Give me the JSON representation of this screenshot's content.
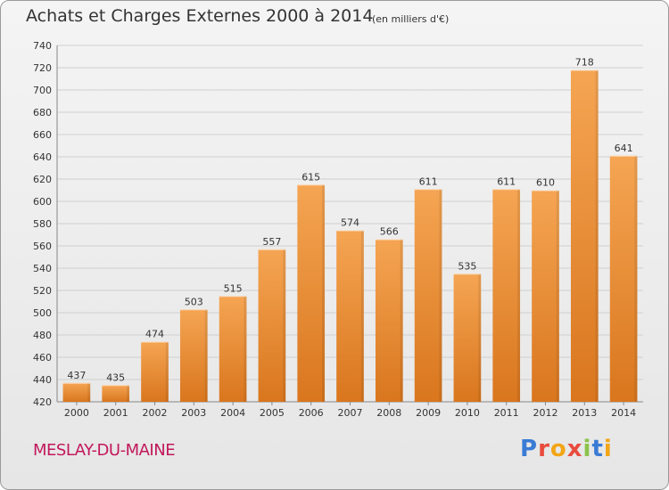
{
  "header": {
    "title": "Achats et Charges Externes 2000 à 2014",
    "subtitle": "(en milliers d'€)"
  },
  "footer": {
    "location": "MESLAY-DU-MAINE",
    "brand": "Proxiti"
  },
  "colors": {
    "bar_light": "#f5a553",
    "bar_dark": "#d9761e",
    "grid": "#cfcfcf",
    "location_text": "#c2185b",
    "brand_letters": [
      "#3a7bd5",
      "#e84c3d",
      "#f2a516",
      "#e84c3d",
      "#8bc34a",
      "#3a7bd5",
      "#f2a516"
    ]
  },
  "chart_data": {
    "type": "bar",
    "categories": [
      "2000",
      "2001",
      "2002",
      "2003",
      "2004",
      "2005",
      "2006",
      "2007",
      "2008",
      "2009",
      "2010",
      "2011",
      "2012",
      "2013",
      "2014"
    ],
    "values": [
      437,
      435,
      474,
      503,
      515,
      557,
      615,
      574,
      566,
      611,
      535,
      611,
      610,
      718,
      641
    ],
    "title": "Achats et Charges Externes 2000 à 2014",
    "subtitle": "(en milliers d'€)",
    "ylim": [
      420,
      740
    ],
    "yticks": [
      420,
      440,
      460,
      480,
      500,
      520,
      540,
      560,
      580,
      600,
      620,
      640,
      660,
      680,
      700,
      720,
      740
    ],
    "grid": true,
    "data_labels": true
  }
}
